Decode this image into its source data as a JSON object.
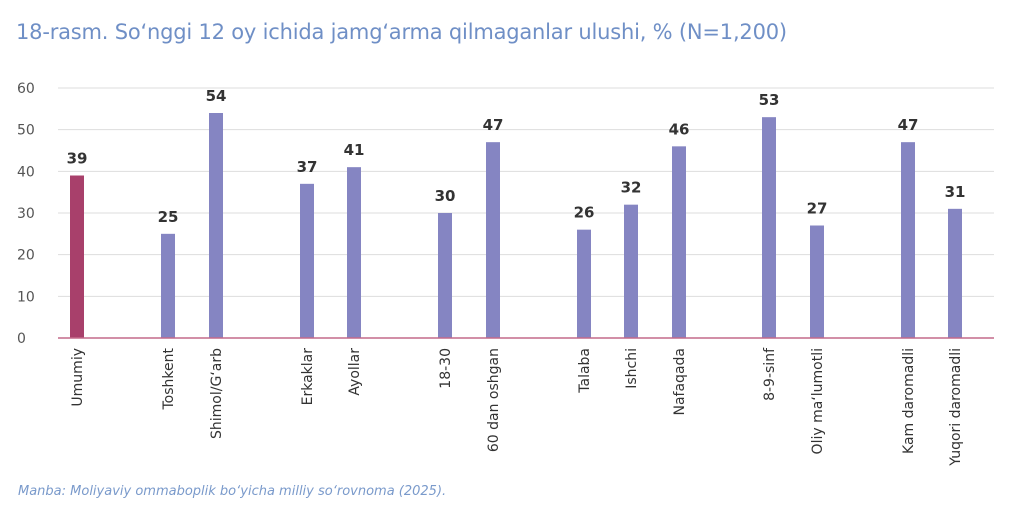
{
  "title": "18-rasm. So‘nggi 12 oy ichida jamg‘arma qilmaganlar ulushi, % (N=1,200)",
  "source": "Manba: Moliyaviy ommaboplik bo‘yicha milliy so‘rovnoma (2025).",
  "colors": {
    "highlight": "#a8406b",
    "bar": "#8585c2",
    "grid": "#dddddd",
    "axis": "#c46a8a"
  },
  "chart_data": {
    "type": "bar",
    "title": "18-rasm. So‘nggi 12 oy ichida jamg‘arma qilmaganlar ulushi, % (N=1,200)",
    "xlabel": "",
    "ylabel": "",
    "ylim": [
      0,
      60
    ],
    "yticks": [
      0,
      10,
      20,
      30,
      40,
      50,
      60
    ],
    "grid": true,
    "categories": [
      "Umumiy",
      "Toshkent",
      "Shimol/G‘arb",
      "Erkaklar",
      "Ayollar",
      "18-30",
      "60 dan oshgan",
      "Talaba",
      "Ishchi",
      "Nafaqada",
      "8-9-sinf",
      "Oliy ma‘lumotli",
      "Kam daromadli",
      "Yuqori daromadli"
    ],
    "values": [
      39,
      25,
      54,
      37,
      41,
      30,
      47,
      26,
      32,
      46,
      53,
      27,
      47,
      31
    ],
    "groups": [
      0,
      1,
      1,
      2,
      2,
      3,
      3,
      4,
      4,
      4,
      5,
      5,
      6,
      6
    ],
    "highlight_index": 0
  }
}
